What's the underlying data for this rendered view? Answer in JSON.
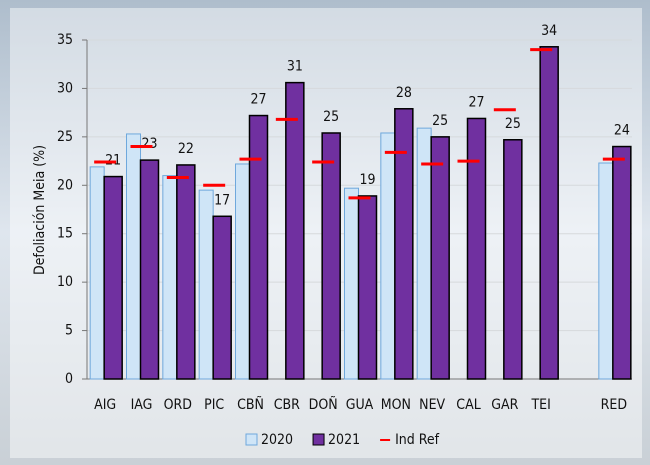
{
  "chart_data": {
    "type": "bar",
    "y_label": "Defoliación Meia (%)",
    "categories": [
      "AIG",
      "IAG",
      "ORD",
      "PIC",
      "CBÑ",
      "CBR",
      "DOÑ",
      "GUA",
      "MON",
      "NEV",
      "CAL",
      "GAR",
      "TEI",
      null,
      "RED"
    ],
    "series": [
      {
        "name": "2020",
        "color": "#cfe5f7",
        "values": [
          21.9,
          25.3,
          21.0,
          19.5,
          22.2,
          null,
          null,
          19.7,
          25.4,
          25.9,
          null,
          null,
          null,
          null,
          22.3
        ]
      },
      {
        "name": "2021",
        "color": "#7030a0",
        "values": [
          20.9,
          22.6,
          22.1,
          16.8,
          27.2,
          30.6,
          25.4,
          18.9,
          27.9,
          25.0,
          26.9,
          24.7,
          34.3,
          null,
          24.0
        ],
        "value_labels": [
          "21",
          "23",
          "22",
          "17",
          "27",
          "31",
          "25",
          "19",
          "28",
          "25",
          "27",
          "25",
          "34",
          null,
          "24"
        ]
      },
      {
        "name": "Ind Ref",
        "color": "#ff0000",
        "values": [
          22.4,
          24.0,
          20.8,
          20.0,
          22.7,
          26.8,
          22.4,
          18.7,
          23.4,
          22.2,
          22.5,
          27.8,
          34.0,
          null,
          22.7
        ]
      }
    ],
    "ylim": [
      0,
      35
    ],
    "yticks": [
      0,
      5,
      10,
      15,
      20,
      25,
      30,
      35
    ],
    "grid": true,
    "legend": "bottom"
  }
}
